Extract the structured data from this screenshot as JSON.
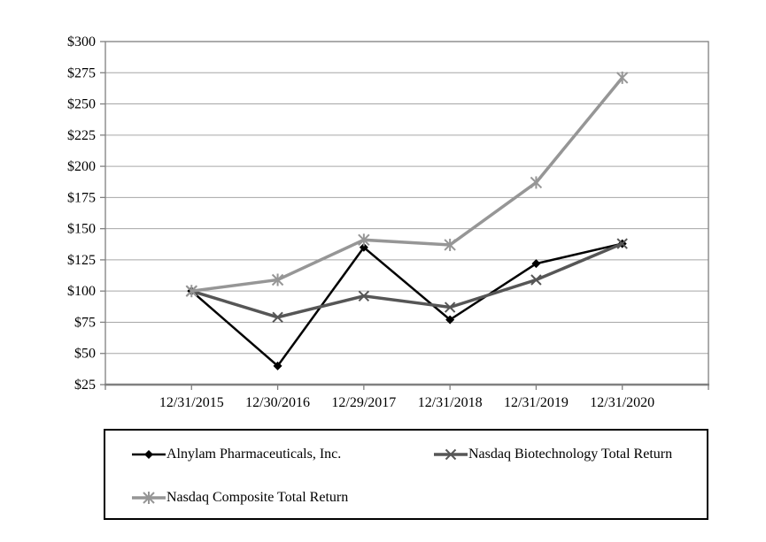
{
  "chart_data": {
    "type": "line",
    "title": "",
    "xlabel": "",
    "ylabel": "",
    "categories": [
      "12/31/2015",
      "12/30/2016",
      "12/29/2017",
      "12/31/2018",
      "12/31/2019",
      "12/31/2020"
    ],
    "series": [
      {
        "name": "Alnylam Pharmaceuticals, Inc.",
        "marker": "diamond",
        "color": "#000000",
        "line_width": 2.5,
        "values": [
          100,
          40,
          135,
          77,
          122,
          138
        ]
      },
      {
        "name": "Nasdaq Biotechnology Total Return",
        "marker": "x",
        "color": "#565656",
        "line_width": 3.5,
        "values": [
          100,
          79,
          96,
          87,
          109,
          138
        ]
      },
      {
        "name": "Nasdaq Composite Total Return",
        "marker": "asterisk",
        "color": "#969696",
        "line_width": 3.5,
        "values": [
          100,
          109,
          141,
          137,
          187,
          271
        ]
      }
    ],
    "ylim": [
      25,
      300
    ],
    "ytick_step": 25,
    "ytick_labels": [
      "$25",
      "$50",
      "$75",
      "$100",
      "$125",
      "$150",
      "$175",
      "$200",
      "$225",
      "$250",
      "$275",
      "$300"
    ],
    "grid": true,
    "legend_position": "bottom-box"
  },
  "colors": {
    "background": "#ffffff",
    "gridline": "#a6a6a6",
    "frame": "#808080",
    "axis": "#808080",
    "tick": "#808080",
    "label_text": "#000000",
    "legend_border": "#000000"
  }
}
